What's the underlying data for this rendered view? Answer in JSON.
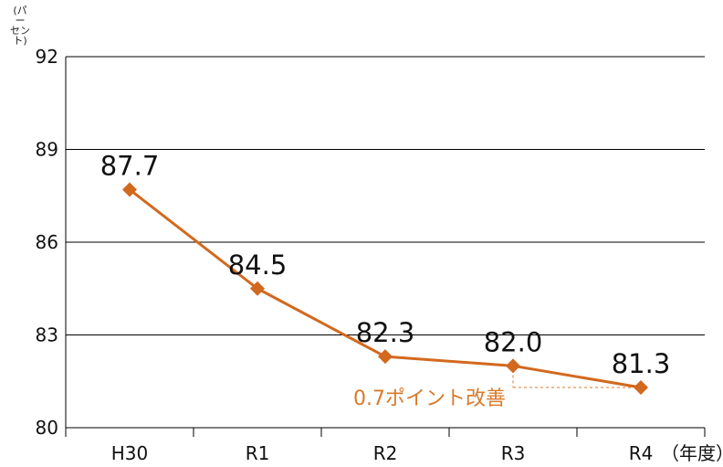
{
  "chart_data": {
    "type": "line",
    "categories": [
      "H30",
      "R1",
      "R2",
      "R3",
      "R4"
    ],
    "values": [
      87.7,
      84.5,
      82.3,
      82.0,
      81.3
    ],
    "data_labels": [
      "87.7",
      "84.5",
      "82.3",
      "82.0",
      "81.3"
    ],
    "yticks": [
      "80",
      "83",
      "86",
      "89",
      "92"
    ],
    "ylim": [
      80,
      92
    ],
    "y_unit_label_top": "(パー",
    "y_unit_label_bottom": "セント)",
    "x_unit_label": "（年度）",
    "annotation": "0.7ポイント改善",
    "grid": true,
    "colors": {
      "series": "#D2691E",
      "annotation": "#D87A2A",
      "grid": "#000000"
    }
  }
}
